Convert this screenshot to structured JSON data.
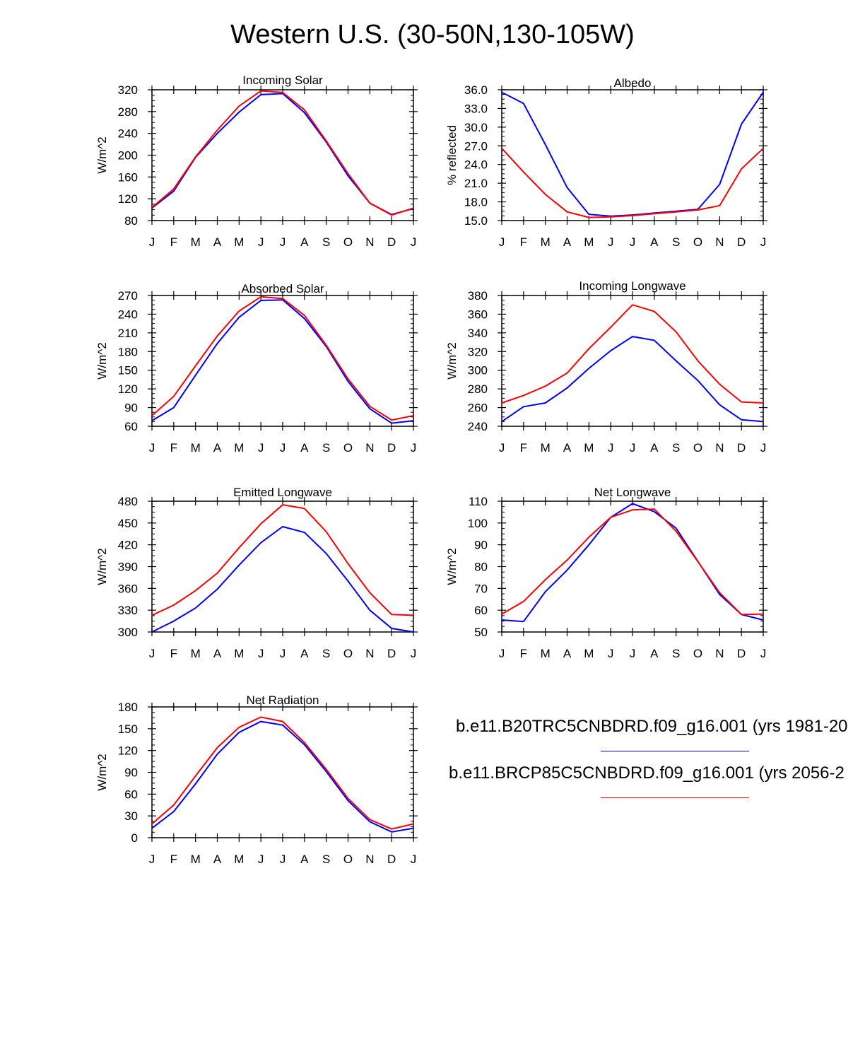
{
  "title": "Western U.S. (30-50N,130-105W)",
  "legend": [
    {
      "label": "b.e11.B20TRC5CNBDRD.f09_g16.001 (yrs 1981-20",
      "color": "#0000ff"
    },
    {
      "label": "b.e11.BRCP85C5CNBDRD.f09_g16.001 (yrs 2056-2",
      "color": "#ff0000"
    }
  ],
  "months": [
    "J",
    "F",
    "M",
    "A",
    "M",
    "J",
    "J",
    "A",
    "S",
    "O",
    "N",
    "D",
    "J"
  ],
  "chart_data": [
    {
      "type": "line",
      "title": "Incoming Solar",
      "ylabel": "W/m^2",
      "ylim": [
        80,
        320
      ],
      "yticks": [
        "80",
        "120",
        "160",
        "200",
        "240",
        "280",
        "320"
      ],
      "series": [
        {
          "name": "b.e11.B20TRC5CNBDRD.f09_g16.001",
          "color": "#0000ff",
          "values": [
            103,
            134,
            196,
            240,
            279,
            311,
            313,
            278,
            224,
            162,
            112,
            91,
            102
          ]
        },
        {
          "name": "b.e11.BRCP85C5CNBDRD.f09_g16.001",
          "color": "#ff0000",
          "values": [
            104,
            138,
            197,
            246,
            290,
            318,
            315,
            283,
            226,
            166,
            112,
            90,
            103
          ]
        }
      ]
    },
    {
      "type": "line",
      "title": "Albedo",
      "ylabel": "% reflected",
      "ylim": [
        15,
        36
      ],
      "yticks": [
        "15.0",
        "18.0",
        "21.0",
        "24.0",
        "27.0",
        "30.0",
        "33.0",
        "36.0"
      ],
      "series": [
        {
          "name": "b.e11.B20TRC5CNBDRD.f09_g16.001",
          "color": "#0000ff",
          "values": [
            35.6,
            33.8,
            27.2,
            20.3,
            16.0,
            15.7,
            15.9,
            16.2,
            16.5,
            16.8,
            20.8,
            30.5,
            35.6
          ]
        },
        {
          "name": "b.e11.BRCP85C5CNBDRD.f09_g16.001",
          "color": "#ff0000",
          "values": [
            26.6,
            22.8,
            19.2,
            16.4,
            15.5,
            15.6,
            15.8,
            16.1,
            16.4,
            16.7,
            17.4,
            23.3,
            26.6
          ]
        }
      ]
    },
    {
      "type": "line",
      "title": "Absorbed Solar",
      "ylabel": "W/m^2",
      "ylim": [
        60,
        270
      ],
      "yticks": [
        "60",
        "90",
        "120",
        "150",
        "180",
        "210",
        "240",
        "270"
      ],
      "series": [
        {
          "name": "b.e11.B20TRC5CNBDRD.f09_g16.001",
          "color": "#0000ff",
          "values": [
            69,
            90,
            142,
            193,
            235,
            262,
            263,
            233,
            188,
            132,
            88,
            65,
            69
          ]
        },
        {
          "name": "b.e11.BRCP85C5CNBDRD.f09_g16.001",
          "color": "#ff0000",
          "values": [
            77,
            108,
            157,
            205,
            245,
            268,
            265,
            238,
            190,
            136,
            92,
            70,
            77
          ]
        }
      ]
    },
    {
      "type": "line",
      "title": "Incoming Longwave",
      "ylabel": "W/m^2",
      "ylim": [
        240,
        380
      ],
      "yticks": [
        "240",
        "260",
        "280",
        "300",
        "320",
        "340",
        "360",
        "380"
      ],
      "series": [
        {
          "name": "b.e11.B20TRC5CNBDRD.f09_g16.001",
          "color": "#0000ff",
          "values": [
            245,
            261,
            265,
            281,
            302,
            321,
            336,
            332,
            310,
            289,
            263,
            247,
            245
          ]
        },
        {
          "name": "b.e11.BRCP85C5CNBDRD.f09_g16.001",
          "color": "#ff0000",
          "values": [
            265,
            273,
            283,
            297,
            323,
            346,
            370,
            363,
            341,
            310,
            285,
            266,
            265
          ]
        }
      ]
    },
    {
      "type": "line",
      "title": "Emitted Longwave",
      "ylabel": "W/m^2",
      "ylim": [
        300,
        480
      ],
      "yticks": [
        "300",
        "330",
        "360",
        "390",
        "420",
        "450",
        "480"
      ],
      "series": [
        {
          "name": "b.e11.B20TRC5CNBDRD.f09_g16.001",
          "color": "#0000ff",
          "values": [
            300,
            315,
            333,
            359,
            392,
            423,
            445,
            437,
            408,
            370,
            330,
            305,
            300
          ]
        },
        {
          "name": "b.e11.BRCP85C5CNBDRD.f09_g16.001",
          "color": "#ff0000",
          "values": [
            323,
            337,
            357,
            381,
            416,
            449,
            475,
            470,
            438,
            394,
            354,
            324,
            323
          ]
        }
      ]
    },
    {
      "type": "line",
      "title": "Net Longwave",
      "ylabel": "W/m^2",
      "ylim": [
        50,
        110
      ],
      "yticks": [
        "50",
        "60",
        "70",
        "80",
        "90",
        "100",
        "110"
      ],
      "series": [
        {
          "name": "b.e11.B20TRC5CNBDRD.f09_g16.001",
          "color": "#0000ff",
          "values": [
            55.5,
            54.8,
            68.5,
            78.4,
            90.0,
            102.6,
            108.9,
            105.2,
            97.6,
            82.4,
            67.2,
            58.0,
            55.5
          ]
        },
        {
          "name": "b.e11.BRCP85C5CNBDRD.f09_g16.001",
          "color": "#ff0000",
          "values": [
            58.2,
            64.0,
            74.0,
            83.0,
            93.5,
            102.6,
            106.0,
            106.4,
            96.2,
            82.3,
            68.0,
            58.0,
            58.2
          ]
        }
      ]
    },
    {
      "type": "line",
      "title": "Net Radiation",
      "ylabel": "W/m^2",
      "ylim": [
        0,
        180
      ],
      "yticks": [
        "0",
        "30",
        "60",
        "90",
        "120",
        "150",
        "180"
      ],
      "series": [
        {
          "name": "b.e11.B20TRC5CNBDRD.f09_g16.001",
          "color": "#0000ff",
          "values": [
            13,
            36,
            74,
            115,
            145,
            160,
            155,
            128,
            91,
            51,
            22,
            8,
            13
          ]
        },
        {
          "name": "b.e11.BRCP85C5CNBDRD.f09_g16.001",
          "color": "#ff0000",
          "values": [
            19,
            45,
            85,
            124,
            152,
            166,
            160,
            131,
            94,
            54,
            25,
            12,
            19
          ]
        }
      ]
    }
  ]
}
